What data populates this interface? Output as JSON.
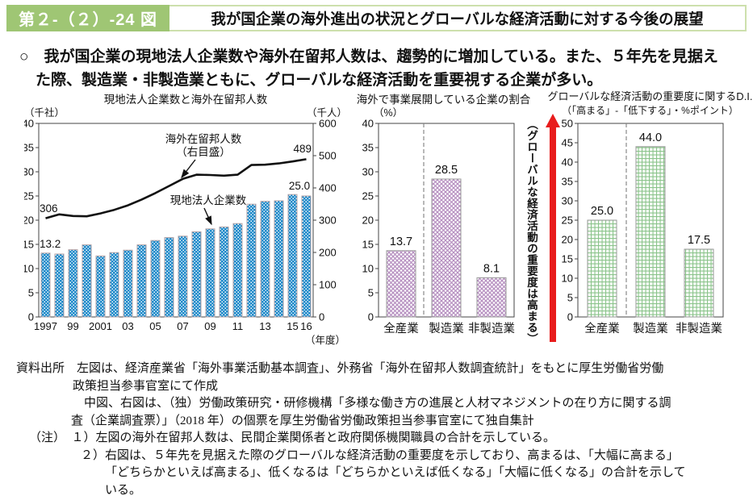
{
  "header": {
    "figure_no": "第２-（２）-24 図",
    "title": "我が国企業の海外進出の状況とグローバルな経済活動に対する今後の展望"
  },
  "lead": {
    "line1": "○　我が国企業の現地法人企業数や海外在留邦人数は、趨勢的に増加している。また、５年先を見据え",
    "line2": "た際、製造業・非製造業ともに、グローバルな経済活動を重要視する企業が多い。"
  },
  "colors": {
    "header_green": "#9fc674",
    "header_border": "#cde0ad",
    "bar_blue": "#1f8ac9",
    "bar_pink": "#b68fc0",
    "bar_green": "#8bc48b",
    "arrow_red": "#e81c1c",
    "line_black": "#111111",
    "axis": "#444444"
  },
  "chart_data": [
    {
      "type": "bar",
      "title": "現地法人企業数と海外在留邦人数",
      "left_axis_unit": "（千社）",
      "right_axis_unit": "（千人）",
      "x_axis_unit": "（年度）",
      "left_ylim": [
        0,
        40
      ],
      "left_step": 5,
      "right_ylim": [
        0,
        600
      ],
      "right_step": 100,
      "years": [
        1997,
        1998,
        1999,
        2000,
        2001,
        2002,
        2003,
        2004,
        2005,
        2006,
        2007,
        2008,
        2009,
        2010,
        2011,
        2012,
        2013,
        2014,
        2015,
        2016
      ],
      "x_tick_indices": [
        0,
        2,
        4,
        6,
        8,
        10,
        12,
        14,
        16,
        18,
        19
      ],
      "x_tick_labels": [
        "1997",
        "99",
        "2001",
        "03",
        "05",
        "07",
        "09",
        "11",
        "13",
        "15",
        "16"
      ],
      "series": [
        {
          "name": "現地法人企業数",
          "kind": "bar",
          "values": [
            13.2,
            13.0,
            13.9,
            14.9,
            12.6,
            13.3,
            13.8,
            14.9,
            15.8,
            16.4,
            16.7,
            17.6,
            18.2,
            18.6,
            19.3,
            23.3,
            23.9,
            24.0,
            25.3,
            25.0
          ]
        },
        {
          "name": "海外在留邦人数（右目盛）",
          "kind": "line",
          "values": [
            306,
            318,
            313,
            312,
            321,
            332,
            346,
            364,
            384,
            406,
            428,
            441,
            440,
            438,
            441,
            471,
            472,
            476,
            482,
            489
          ]
        }
      ],
      "annotations": {
        "line_label1": "海外在留邦人数",
        "line_label2": "（右目盛）",
        "bar_label": "現地法人企業数",
        "first_line_value": "306",
        "last_line_value": "489",
        "first_bar_value": "13.2",
        "last_bar_value": "25.0"
      }
    },
    {
      "type": "bar",
      "title": "海外で事業展開している企業の割合",
      "unit": "（%）",
      "categories": [
        "全産業",
        "製造業",
        "非製造業"
      ],
      "values": [
        13.7,
        28.5,
        8.1
      ],
      "value_labels": [
        "13.7",
        "28.5",
        "8.1"
      ],
      "ylim": [
        0,
        40
      ],
      "step": 5,
      "separator_after_first": true
    },
    {
      "type": "bar",
      "title": "グローバルな経済活動の重要度に関するD.I.",
      "subtitle": "（「高まる」-「低下する」・%ポイント）",
      "categories": [
        "全産業",
        "製造業",
        "非製造業"
      ],
      "values": [
        25.0,
        44.0,
        17.5
      ],
      "value_labels": [
        "25.0",
        "44.0",
        "17.5"
      ],
      "ylim": [
        0,
        50
      ],
      "step": 5,
      "separator_after_first": true,
      "arrow_label": "（グローバルな経済活動の重要度は高まる）"
    }
  ],
  "footer": {
    "lines": [
      {
        "text": "資料出所　左図は、経済産業省「海外事業活動基本調査」、外務省「海外在留邦人数調査統計」をもとに厚生労働省労働"
      },
      {
        "text": "政策担当参事官室にて作成"
      },
      {
        "text": "中図、右図は、（独）労働政策研究・研修機構「多様な働き方の進展と人材マネジメントの在り方に関する調"
      },
      {
        "text": "査（企業調査票）」（2018 年）の個票を厚生労働省労働政策担当参事官室にて独自集計"
      },
      {
        "text": "（注）　１）左図の海外在留邦人数は、民間企業関係者と政府関係機関職員の合計を示している。"
      },
      {
        "text": "２）右図は、５年先を見据えた際のグローバルな経済活動の重要度を示しており、高まるは、「大幅に高まる」"
      },
      {
        "text": "「どちらかといえば高まる」、低くなるは「どちらかといえば低くなる」「大幅に低くなる」の合計を示して"
      },
      {
        "text": "いる。"
      }
    ]
  }
}
